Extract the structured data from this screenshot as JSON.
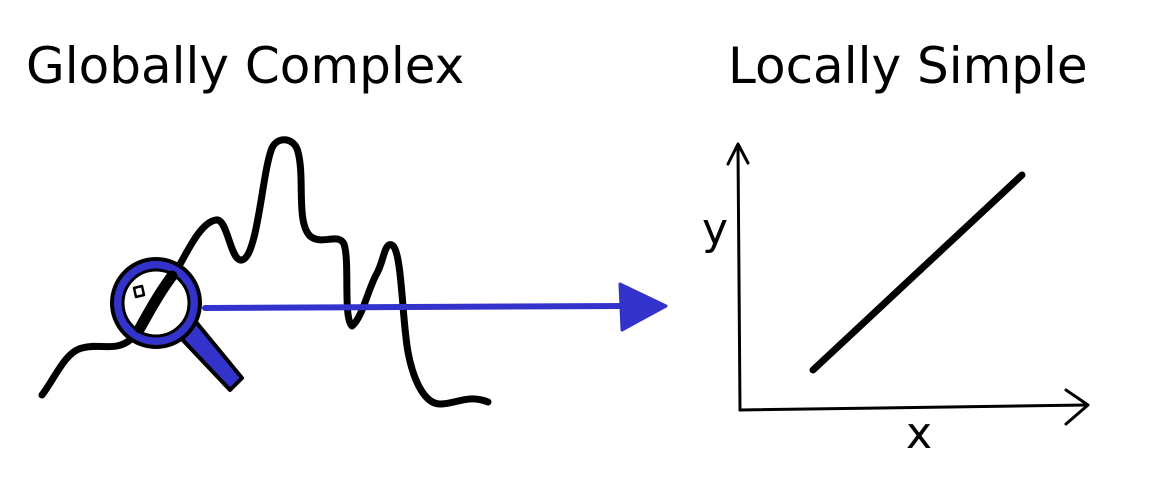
{
  "left_panel": {
    "title": "Globally Complex"
  },
  "right_panel": {
    "title": "Locally Simple",
    "x_axis_label": "x",
    "y_axis_label": "y"
  },
  "icons": {
    "magnifier": "magnifying-glass-icon",
    "arrow": "right-arrow-icon"
  },
  "colors": {
    "ink": "#000000",
    "accent": "#3333cc"
  }
}
